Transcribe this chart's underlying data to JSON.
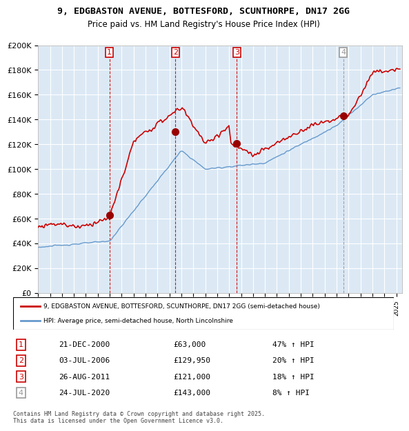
{
  "title_line1": "9, EDGBASTON AVENUE, BOTTESFORD, SCUNTHORPE, DN17 2GG",
  "title_line2": "Price paid vs. HM Land Registry's House Price Index (HPI)",
  "ylabel": "",
  "background_color": "#ffffff",
  "plot_bg_color": "#dce9f5",
  "grid_color": "#ffffff",
  "red_line_color": "#cc0000",
  "blue_line_color": "#6699cc",
  "sale_marker_color": "#990000",
  "vline_color_red": "#cc0000",
  "vline_color_gray": "#999999",
  "legend_label_red": "9, EDGBASTON AVENUE, BOTTESFORD, SCUNTHORPE, DN17 2GG (semi-detached house)",
  "legend_label_blue": "HPI: Average price, semi-detached house, North Lincolnshire",
  "sales": [
    {
      "num": 1,
      "date_str": "21-DEC-2000",
      "year": 2000.97,
      "price": 63000,
      "pct": "47%",
      "dir": "↑"
    },
    {
      "num": 2,
      "date_str": "03-JUL-2006",
      "year": 2006.5,
      "price": 129950,
      "pct": "20%",
      "dir": "↑"
    },
    {
      "num": 3,
      "date_str": "26-AUG-2011",
      "year": 2011.65,
      "price": 121000,
      "pct": "18%",
      "dir": "↑"
    },
    {
      "num": 4,
      "date_str": "24-JUL-2020",
      "year": 2020.56,
      "price": 143000,
      "pct": "8%",
      "dir": "↑"
    }
  ],
  "footer": "Contains HM Land Registry data © Crown copyright and database right 2025.\nThis data is licensed under the Open Government Licence v3.0.",
  "ylim": [
    0,
    200000
  ],
  "ytick_step": 20000,
  "xmin": 1995.0,
  "xmax": 2025.5
}
